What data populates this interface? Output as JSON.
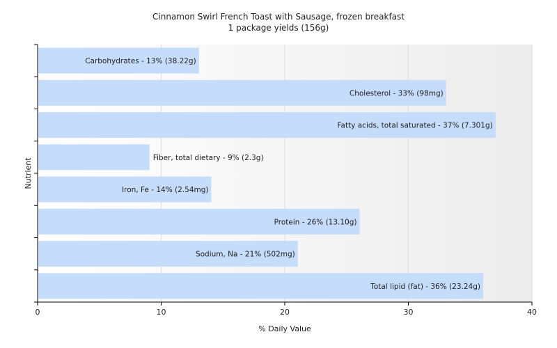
{
  "chart_data": {
    "type": "bar",
    "orientation": "horizontal",
    "title": "Cinnamon Swirl French Toast with Sausage, frozen breakfast",
    "subtitle": "1 package yields (156g)",
    "xlabel": "% Daily Value",
    "ylabel": "Nutrient",
    "xlim": [
      0,
      40
    ],
    "xticks": [
      0,
      10,
      20,
      30,
      40
    ],
    "grid": true,
    "bar_color": "#c6dcfb",
    "background_gradient": [
      "#ffffff",
      "#ececec"
    ],
    "categories": [
      "Carbohydrates",
      "Cholesterol",
      "Fatty acids, total saturated",
      "Fiber, total dietary",
      "Iron, Fe",
      "Protein",
      "Sodium, Na",
      "Total lipid (fat)"
    ],
    "values": [
      13,
      33,
      37,
      9,
      14,
      26,
      21,
      36
    ],
    "labels": [
      "Carbohydrates - 13% (38.22g)",
      "Cholesterol - 33% (98mg)",
      "Fatty acids, total saturated - 37% (7.301g)",
      "Fiber, total dietary - 9% (2.3g)",
      "Iron, Fe - 14% (2.54mg)",
      "Protein - 26% (13.10g)",
      "Sodium, Na - 21% (502mg)",
      "Total lipid (fat) - 36% (23.24g)"
    ]
  }
}
